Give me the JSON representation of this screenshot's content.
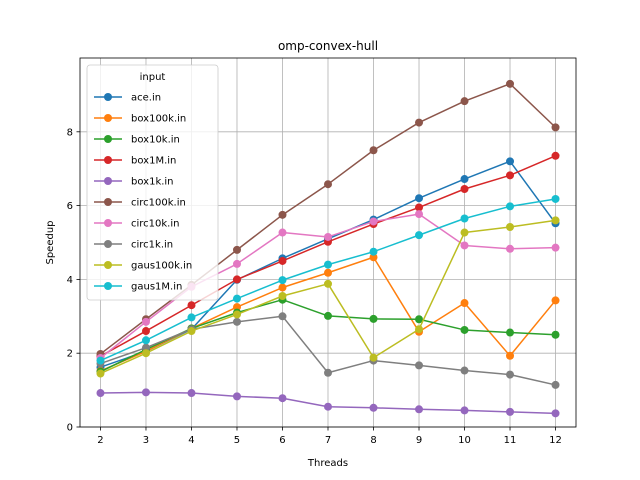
{
  "chart_data": {
    "type": "line",
    "title": "omp-convex-hull",
    "xlabel": "Threads",
    "ylabel": "Speedup",
    "x": [
      2,
      3,
      4,
      5,
      6,
      7,
      8,
      9,
      10,
      11,
      12
    ],
    "xlim": [
      1.55,
      12.45
    ],
    "ylim": [
      0,
      10
    ],
    "xticks": [
      2,
      3,
      4,
      5,
      6,
      7,
      8,
      9,
      10,
      11,
      12
    ],
    "yticks": [
      0,
      2,
      4,
      6,
      8
    ],
    "grid": true,
    "legend_title": "input",
    "legend_position": "top-left",
    "series": [
      {
        "name": "ace.in",
        "color": "#1f77b4",
        "values": [
          1.62,
          2.05,
          2.65,
          3.99,
          4.57,
          5.1,
          5.62,
          6.2,
          6.72,
          7.2,
          5.52
        ]
      },
      {
        "name": "box100k.in",
        "color": "#ff7f0e",
        "values": [
          1.52,
          2.05,
          2.67,
          3.25,
          3.78,
          4.18,
          4.6,
          2.58,
          3.36,
          1.93,
          3.43
        ]
      },
      {
        "name": "box10k.in",
        "color": "#2ca02c",
        "values": [
          1.5,
          2.1,
          2.67,
          3.1,
          3.45,
          3.01,
          2.93,
          2.92,
          2.63,
          2.56,
          2.5
        ]
      },
      {
        "name": "box1M.in",
        "color": "#d62728",
        "values": [
          1.92,
          2.6,
          3.3,
          4.0,
          4.5,
          5.02,
          5.5,
          5.95,
          6.45,
          6.82,
          7.35
        ]
      },
      {
        "name": "box1k.in",
        "color": "#9467bd",
        "values": [
          0.92,
          0.94,
          0.92,
          0.83,
          0.78,
          0.55,
          0.52,
          0.48,
          0.45,
          0.41,
          0.37
        ]
      },
      {
        "name": "circ100k.in",
        "color": "#8c564b",
        "values": [
          1.98,
          2.92,
          3.85,
          4.8,
          5.75,
          6.58,
          7.5,
          8.25,
          8.83,
          9.3,
          8.12
        ]
      },
      {
        "name": "circ10k.in",
        "color": "#e377c2",
        "values": [
          1.87,
          2.85,
          3.8,
          4.42,
          5.27,
          5.15,
          5.57,
          5.77,
          4.92,
          4.83,
          4.86
        ]
      },
      {
        "name": "circ1k.in",
        "color": "#7f7f7f",
        "values": [
          1.72,
          2.15,
          2.65,
          2.85,
          3.0,
          1.47,
          1.8,
          1.67,
          1.53,
          1.42,
          1.14
        ]
      },
      {
        "name": "gaus100k.in",
        "color": "#bcbd22",
        "values": [
          1.45,
          2.0,
          2.6,
          3.05,
          3.55,
          3.88,
          1.88,
          2.65,
          5.27,
          5.42,
          5.6
        ]
      },
      {
        "name": "gaus1M.in",
        "color": "#17becf",
        "values": [
          1.8,
          2.35,
          2.97,
          3.48,
          3.98,
          4.4,
          4.75,
          5.2,
          5.65,
          5.98,
          6.18
        ]
      }
    ]
  }
}
